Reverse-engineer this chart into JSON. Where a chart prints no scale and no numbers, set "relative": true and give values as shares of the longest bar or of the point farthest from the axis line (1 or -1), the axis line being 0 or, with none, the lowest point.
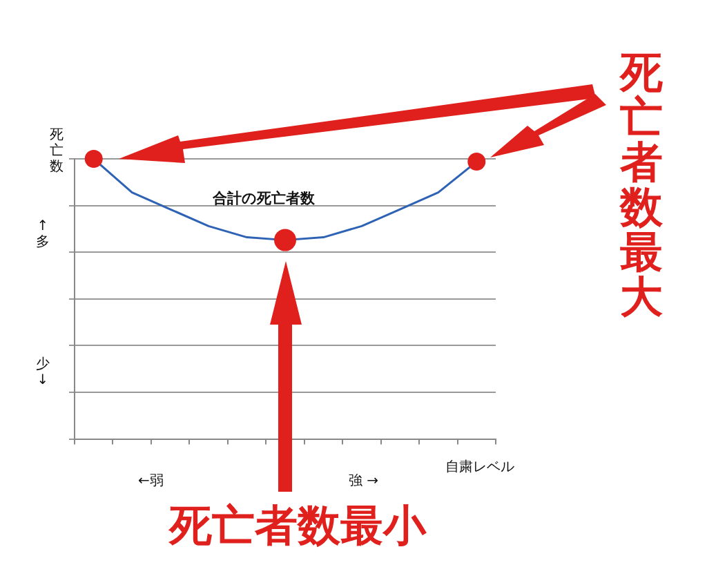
{
  "chart_data": {
    "type": "line",
    "categories": [
      null,
      null,
      null,
      null,
      null,
      null,
      null,
      null,
      null,
      null,
      null
    ],
    "relative": true,
    "ylabel": "死亡数",
    "xlabel": "自粛レベル",
    "grid": "y",
    "series": [
      {
        "name": "合計の死亡者数",
        "color": "#2e62b5",
        "values": [
          1,
          0.88,
          0.82,
          0.76,
          0.72,
          0.71,
          0.72,
          0.76,
          0.82,
          0.88,
          0.99
        ]
      }
    ],
    "annotations": [
      "↑ 多",
      "少 ↓",
      "←弱",
      "強 →",
      "死亡者数最大",
      "死亡者数最小"
    ]
  }
}
